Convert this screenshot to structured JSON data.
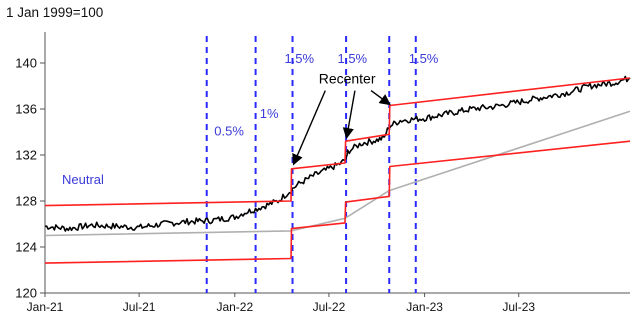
{
  "chart_data": {
    "type": "line",
    "subtitle": "1 Jan 1999=100",
    "xlabel": "",
    "ylabel": "",
    "y_ticks": [
      120,
      124,
      128,
      132,
      136,
      140
    ],
    "ylim": [
      120,
      142
    ],
    "x_range": [
      "2021-01-01",
      "2024-01-31"
    ],
    "x_ticks": [
      {
        "label": "Jan-21",
        "date": "2021-01-01"
      },
      {
        "label": "Jul-21",
        "date": "2021-07-01"
      },
      {
        "label": "Jan-22",
        "date": "2022-01-01"
      },
      {
        "label": "Jul-22",
        "date": "2022-07-01"
      },
      {
        "label": "Jan-23",
        "date": "2023-01-01"
      },
      {
        "label": "Jul-23",
        "date": "2023-07-01"
      }
    ],
    "grid": false,
    "colors": {
      "index": "#000000",
      "band": "#ff2020",
      "central": "#b0b0b0",
      "vline": "#2a2aff",
      "annot": "#3b3bd9",
      "axis": "#555555"
    },
    "series": [
      {
        "key": "index",
        "points": [
          [
            "2021-01-01",
            125.8
          ],
          [
            "2021-02-15",
            125.6
          ],
          [
            "2021-04-01",
            125.9
          ],
          [
            "2021-05-15",
            125.8
          ],
          [
            "2021-07-01",
            125.7
          ],
          [
            "2021-08-15",
            126.0
          ],
          [
            "2021-10-01",
            126.2
          ],
          [
            "2021-11-15",
            126.3
          ],
          [
            "2022-01-01",
            126.6
          ],
          [
            "2022-01-20",
            127.0
          ],
          [
            "2022-02-10",
            127.3
          ],
          [
            "2022-03-01",
            127.6
          ],
          [
            "2022-03-25",
            128.0
          ],
          [
            "2022-04-10",
            128.6
          ],
          [
            "2022-05-01",
            129.4
          ],
          [
            "2022-06-01",
            130.2
          ],
          [
            "2022-07-01",
            130.8
          ],
          [
            "2022-07-25",
            131.3
          ],
          [
            "2022-08-05",
            131.8
          ],
          [
            "2022-08-06",
            132.3
          ],
          [
            "2022-09-01",
            133.0
          ],
          [
            "2022-10-01",
            133.3
          ],
          [
            "2022-10-15",
            133.5
          ],
          [
            "2022-10-25",
            134.5
          ],
          [
            "2022-11-15",
            135.0
          ],
          [
            "2023-01-01",
            135.2
          ],
          [
            "2023-02-15",
            135.6
          ],
          [
            "2023-04-01",
            136.0
          ],
          [
            "2023-05-15",
            136.2
          ],
          [
            "2023-07-01",
            136.6
          ],
          [
            "2023-08-15",
            137.0
          ],
          [
            "2023-10-01",
            137.4
          ],
          [
            "2023-11-15",
            138.0
          ],
          [
            "2024-01-01",
            138.3
          ],
          [
            "2024-01-31",
            138.7
          ]
        ]
      },
      {
        "key": "central",
        "points": [
          [
            "2021-01-01",
            125.0
          ],
          [
            "2022-04-19",
            125.4
          ],
          [
            "2022-08-01",
            126.5
          ],
          [
            "2022-10-25",
            128.9
          ],
          [
            "2024-01-31",
            135.8
          ]
        ]
      },
      {
        "key": "upper",
        "points": [
          [
            "2021-01-01",
            127.6
          ],
          [
            "2022-04-19",
            128.0
          ],
          [
            "2022-04-20",
            130.8
          ],
          [
            "2022-08-01",
            131.3
          ],
          [
            "2022-08-02",
            133.2
          ],
          [
            "2022-10-25",
            133.8
          ],
          [
            "2022-10-26",
            136.3
          ],
          [
            "2024-01-31",
            138.7
          ]
        ]
      },
      {
        "key": "lower",
        "points": [
          [
            "2021-01-01",
            122.6
          ],
          [
            "2022-04-19",
            123.0
          ],
          [
            "2022-04-20",
            125.6
          ],
          [
            "2022-08-01",
            126.1
          ],
          [
            "2022-08-02",
            127.9
          ],
          [
            "2022-10-25",
            128.4
          ],
          [
            "2022-10-26",
            131.0
          ],
          [
            "2024-01-31",
            133.2
          ]
        ]
      }
    ],
    "vertical_lines": [
      "2021-11-08",
      "2022-02-10",
      "2022-04-22",
      "2022-08-03",
      "2022-10-25",
      "2022-12-15"
    ],
    "annotations": [
      {
        "text": "Neutral",
        "date": "2021-03-15",
        "y": 129.5,
        "color": "annot"
      },
      {
        "text": "0.5%",
        "date": "2021-12-21",
        "y": 133.7,
        "color": "annot"
      },
      {
        "text": "1%",
        "date": "2022-03-08",
        "y": 135.2,
        "color": "annot"
      },
      {
        "text": "1.5%",
        "date": "2022-05-05",
        "y": 140.0,
        "color": "annot"
      },
      {
        "text": "1.5%",
        "date": "2022-08-15",
        "y": 140.0,
        "color": "annot"
      },
      {
        "text": "1.5%",
        "date": "2022-12-30",
        "y": 140.0,
        "color": "annot"
      },
      {
        "text": "Recenter",
        "date": "2022-08-05",
        "y": 138.2,
        "color": "index"
      }
    ],
    "arrows": [
      {
        "from": [
          "2022-06-24",
          137.6
        ],
        "to": [
          "2022-04-24",
          131.2
        ]
      },
      {
        "from": [
          "2022-08-20",
          137.6
        ],
        "to": [
          "2022-08-04",
          133.5
        ]
      },
      {
        "from": [
          "2022-09-20",
          137.6
        ],
        "to": [
          "2022-10-26",
          136.4
        ]
      }
    ]
  }
}
